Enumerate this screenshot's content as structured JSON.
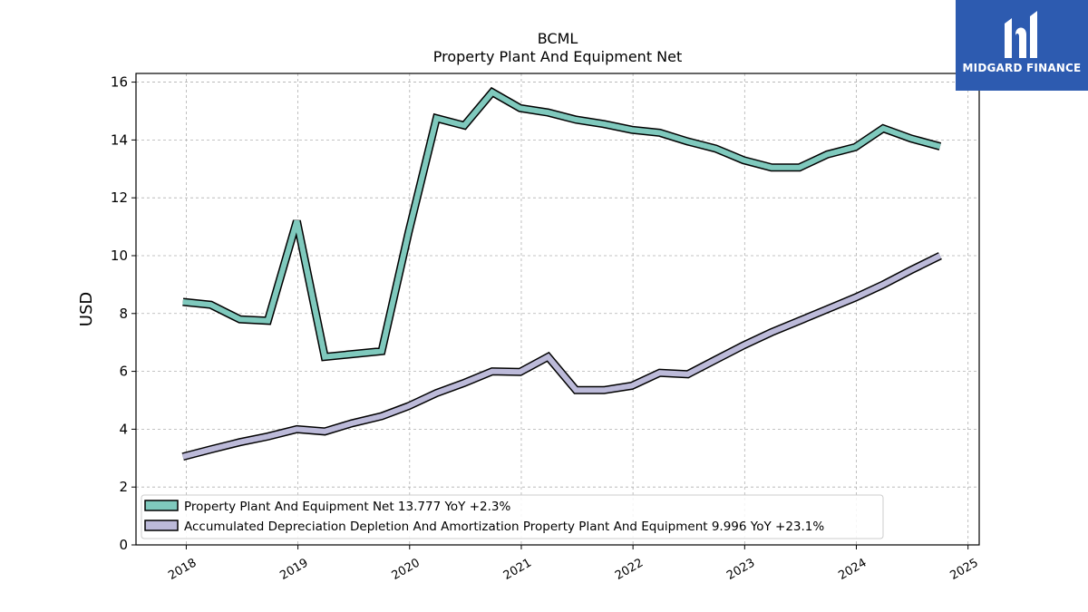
{
  "chart_data": {
    "type": "line",
    "title": "BCML",
    "subtitle": "Property Plant And Equipment Net",
    "ylabel": "USD",
    "xlabel": "",
    "ylim": [
      0,
      16.3
    ],
    "xlim": [
      2017.55,
      2025.1
    ],
    "yticks": [
      0,
      2,
      4,
      6,
      8,
      10,
      12,
      14,
      16
    ],
    "xticks": [
      "2018",
      "2019",
      "2020",
      "2021",
      "2022",
      "2023",
      "2024",
      "2025"
    ],
    "grid": true,
    "legend_position": "lower-left",
    "series": [
      {
        "name": "Property Plant And Equipment Net",
        "legend_label": "Property Plant And Equipment Net  13.777 YoY +2.3%",
        "color": "#7fc9bd",
        "x": [
          2017.97,
          2018.22,
          2018.48,
          2018.73,
          2018.99,
          2019.24,
          2019.75,
          2019.99,
          2020.24,
          2020.49,
          2020.74,
          2020.99,
          2021.24,
          2021.49,
          2021.74,
          2021.99,
          2022.24,
          2022.49,
          2022.74,
          2022.99,
          2023.24,
          2023.49,
          2023.74,
          2023.99,
          2024.24,
          2024.49,
          2024.75
        ],
        "values": [
          8.4,
          8.3,
          7.8,
          7.75,
          11.2,
          6.5,
          6.7,
          10.8,
          14.75,
          14.5,
          15.65,
          15.1,
          14.95,
          14.7,
          14.55,
          14.35,
          14.25,
          13.95,
          13.7,
          13.3,
          13.05,
          13.05,
          13.5,
          13.75,
          14.4,
          14.05,
          13.777
        ]
      },
      {
        "name": "Accumulated Depreciation Depletion And Amortization Property Plant And Equipment",
        "legend_label": "Accumulated Depreciation Depletion And Amortization Property Plant And Equipment  9.996 YoY +23.1%",
        "color": "#bcbad9",
        "x": [
          2017.97,
          2018.22,
          2018.48,
          2018.73,
          2018.99,
          2019.24,
          2019.48,
          2019.75,
          2019.99,
          2020.24,
          2020.49,
          2020.74,
          2020.99,
          2021.24,
          2021.49,
          2021.74,
          2021.99,
          2022.24,
          2022.49,
          2022.74,
          2022.99,
          2023.24,
          2023.49,
          2023.74,
          2023.99,
          2024.24,
          2024.49,
          2024.75
        ],
        "values": [
          3.05,
          3.3,
          3.55,
          3.75,
          4.0,
          3.92,
          4.2,
          4.45,
          4.8,
          5.25,
          5.6,
          6.0,
          5.98,
          6.5,
          5.35,
          5.35,
          5.5,
          5.95,
          5.9,
          6.4,
          6.9,
          7.35,
          7.75,
          8.15,
          8.55,
          9.0,
          9.5,
          9.996
        ]
      }
    ]
  },
  "logo": {
    "text": "MIDGARD FINANCE",
    "background": "#2d5bb0"
  }
}
